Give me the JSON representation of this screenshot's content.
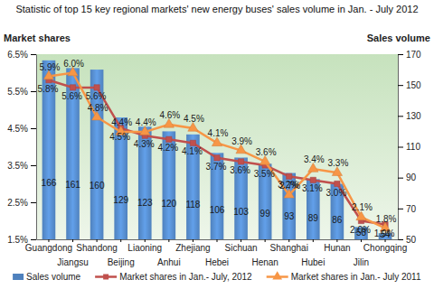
{
  "chart_data": {
    "type": "bar",
    "title": "Statistic of top 15 key regional markets' new energy buses' sales volume in Jan. - July 2012",
    "y_label": "Market shares",
    "y2_label": "Sales volume",
    "categories": [
      "Guangdong",
      "Jiangsu",
      "Shandong",
      "Beijing",
      "Liaoning",
      "Anhui",
      "Zhejiang",
      "Hebei",
      "Sichuan",
      "Henan",
      "Shanghai",
      "Hubei",
      "Hunan",
      "Jilin",
      "Chongqing"
    ],
    "ylim": [
      1.5,
      6.5
    ],
    "yticks": [
      {
        "value": 1.5,
        "label": "1.5%"
      },
      {
        "value": 2.5,
        "label": "2.5%"
      },
      {
        "value": 3.5,
        "label": "3.5%"
      },
      {
        "value": 4.5,
        "label": "4.5%"
      },
      {
        "value": 5.5,
        "label": "5.5%"
      },
      {
        "value": 6.5,
        "label": "6.5%"
      }
    ],
    "y2lim": [
      50,
      170
    ],
    "y2ticks": [
      50,
      70,
      90,
      110,
      130,
      150,
      170
    ],
    "grid": false,
    "legend": "bottom",
    "data_labels": true,
    "series": [
      {
        "name": "Sales volume",
        "type": "bar",
        "axis": "y2",
        "color": "#4f81bd",
        "values": [
          166,
          161,
          160,
          129,
          123,
          120,
          118,
          106,
          103,
          99,
          93,
          89,
          86,
          58,
          54
        ]
      },
      {
        "name": "Market shares in Jan.- July, 2012",
        "type": "line",
        "axis": "y",
        "color": "#c0504d",
        "marker": "square",
        "values": [
          5.8,
          5.6,
          5.6,
          4.5,
          4.3,
          4.2,
          4.1,
          3.7,
          3.6,
          3.5,
          3.2,
          3.1,
          3.0,
          2.0,
          1.9
        ],
        "value_labels": [
          "5.8%",
          "5.6%",
          "5.6%",
          "4.5%",
          "4.3%",
          "4.2%",
          "4.1%",
          "3.7%",
          "3.6%",
          "3.5%",
          "3.2%",
          "3.1%",
          "3.0%",
          "2.0%",
          "1.9%"
        ]
      },
      {
        "name": "Market shares in Jan.- July 2011",
        "type": "line",
        "axis": "y",
        "color": "#f79646",
        "marker": "triangle",
        "values": [
          5.9,
          6.0,
          4.8,
          4.4,
          4.4,
          4.6,
          4.5,
          4.1,
          3.9,
          3.6,
          2.7,
          3.4,
          3.3,
          2.1,
          1.8
        ],
        "value_labels": [
          "5.9%",
          "6.0%",
          "4.8%",
          "4.4%",
          "4.4%",
          "4.6%",
          "4.5%",
          "4.1%",
          "3.9%",
          "3.6%",
          "2.7%",
          "3.4%",
          "3.3%",
          "2.1%",
          "1.8%"
        ]
      }
    ]
  }
}
